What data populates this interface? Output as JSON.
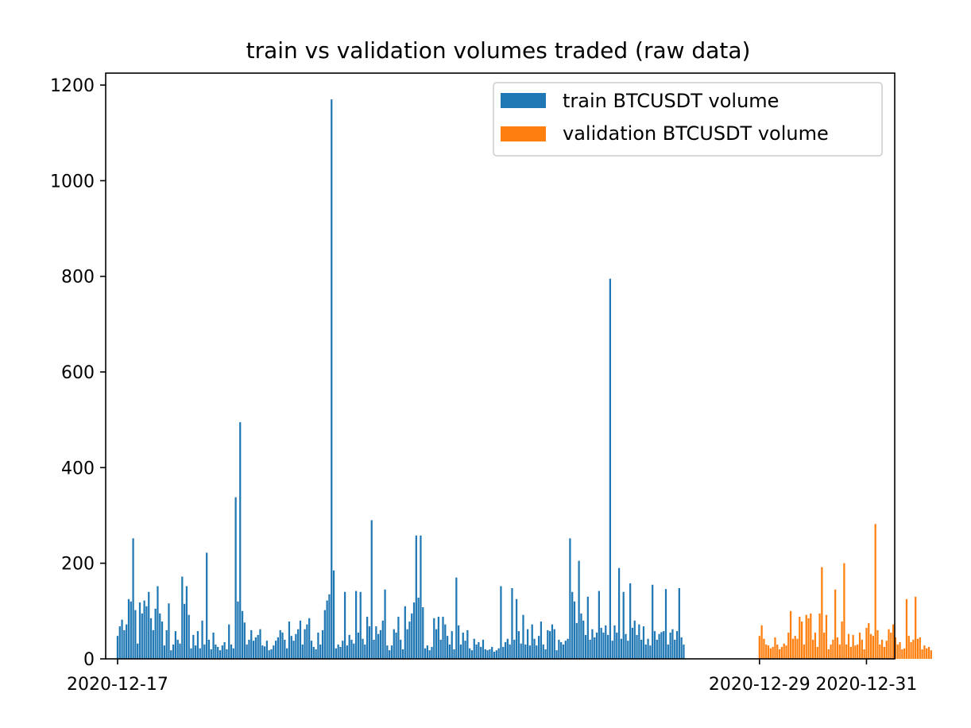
{
  "chart_data": {
    "type": "bar",
    "title": "train vs validation volumes traded (raw data)",
    "xlabel": "",
    "ylabel": "",
    "x_range": [
      "2020-12-16T18:40:00",
      "2020-12-31T12:40:00"
    ],
    "ylim": [
      0,
      1225
    ],
    "yticks": [
      0,
      200,
      400,
      600,
      800,
      1000,
      1200
    ],
    "xticks": [
      "2020-12-17",
      "2020-12-29",
      "2020-12-31"
    ],
    "grid": false,
    "legend_position": "top-right",
    "series": [
      {
        "name": "train BTCUSDT volume",
        "color": "#1f77b4",
        "start": "2020-12-17T00:00:00",
        "interval_hours": 1,
        "values": [
          48,
          68,
          82,
          60,
          72,
          125,
          120,
          252,
          102,
          32,
          118,
          95,
          122,
          110,
          140,
          85,
          60,
          105,
          152,
          95,
          78,
          28,
          60,
          116,
          18,
          30,
          58,
          40,
          32,
          172,
          115,
          152,
          92,
          22,
          50,
          28,
          58,
          22,
          80,
          30,
          222,
          40,
          20,
          55,
          30,
          25,
          18,
          28,
          35,
          20,
          72,
          30,
          22,
          338,
          120,
          495,
          100,
          76,
          30,
          40,
          60,
          38,
          45,
          50,
          62,
          28,
          26,
          38,
          18,
          20,
          28,
          38,
          45,
          60,
          55,
          40,
          22,
          78,
          48,
          38,
          52,
          62,
          80,
          30,
          62,
          72,
          85,
          38,
          25,
          20,
          55,
          30,
          60,
          102,
          122,
          135,
          1170,
          185,
          22,
          30,
          25,
          38,
          140,
          28,
          50,
          40,
          32,
          142,
          55,
          140,
          42,
          30,
          88,
          68,
          290,
          40,
          68,
          52,
          60,
          80,
          145,
          28,
          18,
          28,
          62,
          55,
          88,
          40,
          20,
          110,
          62,
          78,
          95,
          118,
          258,
          128,
          258,
          108,
          22,
          28,
          18,
          25,
          85,
          62,
          88,
          40,
          88,
          72,
          48,
          30,
          58,
          20,
          170,
          70,
          30,
          55,
          38,
          60,
          22,
          18,
          42,
          30,
          35,
          25,
          40,
          20,
          18,
          20,
          25,
          15,
          18,
          22,
          152,
          25,
          35,
          42,
          30,
          148,
          40,
          125,
          58,
          32,
          92,
          30,
          62,
          28,
          72,
          42,
          28,
          48,
          78,
          30,
          20,
          60,
          58,
          72,
          62,
          18,
          40,
          35,
          30,
          38,
          42,
          252,
          140,
          120,
          75,
          205,
          95,
          80,
          50,
          130,
          40,
          62,
          45,
          55,
          142,
          65,
          55,
          70,
          50,
          795,
          38,
          70,
          55,
          190,
          42,
          140,
          52,
          38,
          158,
          65,
          80,
          50,
          72,
          40,
          68,
          30,
          42,
          28,
          155,
          58,
          40,
          52,
          56,
          58,
          146,
          30,
          55,
          62,
          40,
          58,
          148,
          45,
          30
        ]
      },
      {
        "name": "validation BTCUSDT volume",
        "color": "#ff7f0e",
        "start": "2020-12-29T00:00:00",
        "interval_hours": 1,
        "values": [
          48,
          70,
          42,
          30,
          28,
          22,
          25,
          45,
          30,
          20,
          25,
          32,
          28,
          55,
          100,
          42,
          48,
          42,
          88,
          78,
          30,
          92,
          85,
          95,
          40,
          55,
          25,
          95,
          192,
          55,
          92,
          20,
          30,
          40,
          145,
          45,
          30,
          78,
          200,
          30,
          52,
          25,
          50,
          28,
          30,
          55,
          40,
          20,
          65,
          75,
          52,
          48,
          282,
          60,
          30,
          40,
          25,
          38,
          62,
          55,
          72,
          45,
          30,
          35,
          20,
          22,
          125,
          48,
          35,
          40,
          130,
          42,
          45,
          20,
          28,
          22,
          25,
          18
        ]
      }
    ]
  }
}
